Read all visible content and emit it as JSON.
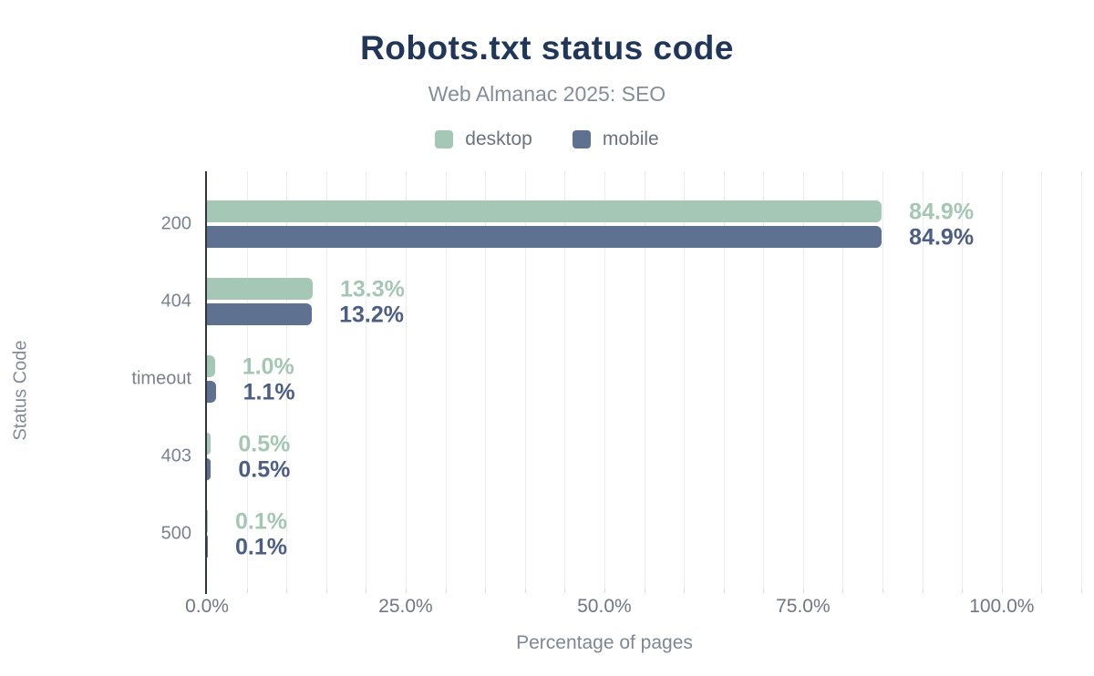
{
  "chart_data": {
    "type": "bar",
    "orientation": "horizontal",
    "title": "Robots.txt status code",
    "subtitle": "Web Almanac 2025: SEO",
    "xlabel": "Percentage of pages",
    "ylabel": "Status Code",
    "categories": [
      "200",
      "404",
      "timeout",
      "403",
      "500"
    ],
    "series": [
      {
        "name": "desktop",
        "color": "#a5c8b6",
        "label_color": "#a4c7b4",
        "values": [
          84.9,
          13.3,
          1.0,
          0.5,
          0.1
        ],
        "value_labels": [
          "84.9%",
          "13.3%",
          "1.0%",
          "0.5%",
          "0.1%"
        ]
      },
      {
        "name": "mobile",
        "color": "#5e7190",
        "label_color": "#4c5e84",
        "values": [
          84.9,
          13.2,
          1.1,
          0.5,
          0.1
        ],
        "value_labels": [
          "84.9%",
          "13.2%",
          "1.1%",
          "0.5%",
          "0.1%"
        ]
      }
    ],
    "xlim": [
      0,
      110
    ],
    "x_tick_values": [
      0,
      25,
      50,
      75,
      100
    ],
    "x_tick_labels": [
      "0.0%",
      "25.0%",
      "50.0%",
      "75.0%",
      "100.0%"
    ],
    "grid_step": 5,
    "grid": "vertical-light",
    "legend_position": "top",
    "axis_line_color": "#2f3640",
    "title_color": "#21375a"
  }
}
